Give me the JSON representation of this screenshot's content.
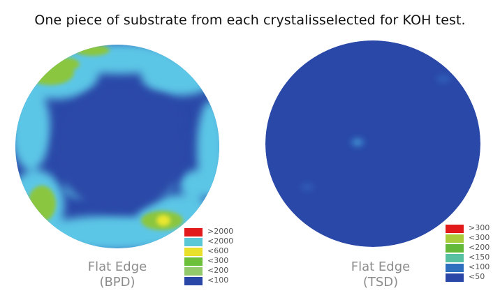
{
  "title": "One piece of substrate from each crystalisselected for KOH test.",
  "bpd": {
    "caption_line1": "Flat Edge",
    "caption_line2": "(BPD)",
    "legend": [
      {
        "label": ">2000",
        "color": "#e31a1c"
      },
      {
        "label": "<2000",
        "color": "#5bc8d8"
      },
      {
        "label": "<600",
        "color": "#e8e02a"
      },
      {
        "label": "<300",
        "color": "#6cc03a"
      },
      {
        "label": "<200",
        "color": "#93c96a"
      },
      {
        "label": "<100",
        "color": "#2a46a6"
      }
    ]
  },
  "tsd": {
    "caption_line1": "Flat Edge",
    "caption_line2": "(TSD)",
    "legend": [
      {
        "label": ">300",
        "color": "#e31a1c"
      },
      {
        "label": "<300",
        "color": "#a8cc3a"
      },
      {
        "label": "<200",
        "color": "#64b83a"
      },
      {
        "label": "<150",
        "color": "#56c0a0"
      },
      {
        "label": "<100",
        "color": "#2f6fc0"
      },
      {
        "label": "<50",
        "color": "#2a46a6"
      }
    ]
  },
  "colors": {
    "wafer_base": "#2a48a8",
    "high_density": "#5cc6e6",
    "mid_density": "#8bc640",
    "hot_spot": "#e8e62e"
  }
}
